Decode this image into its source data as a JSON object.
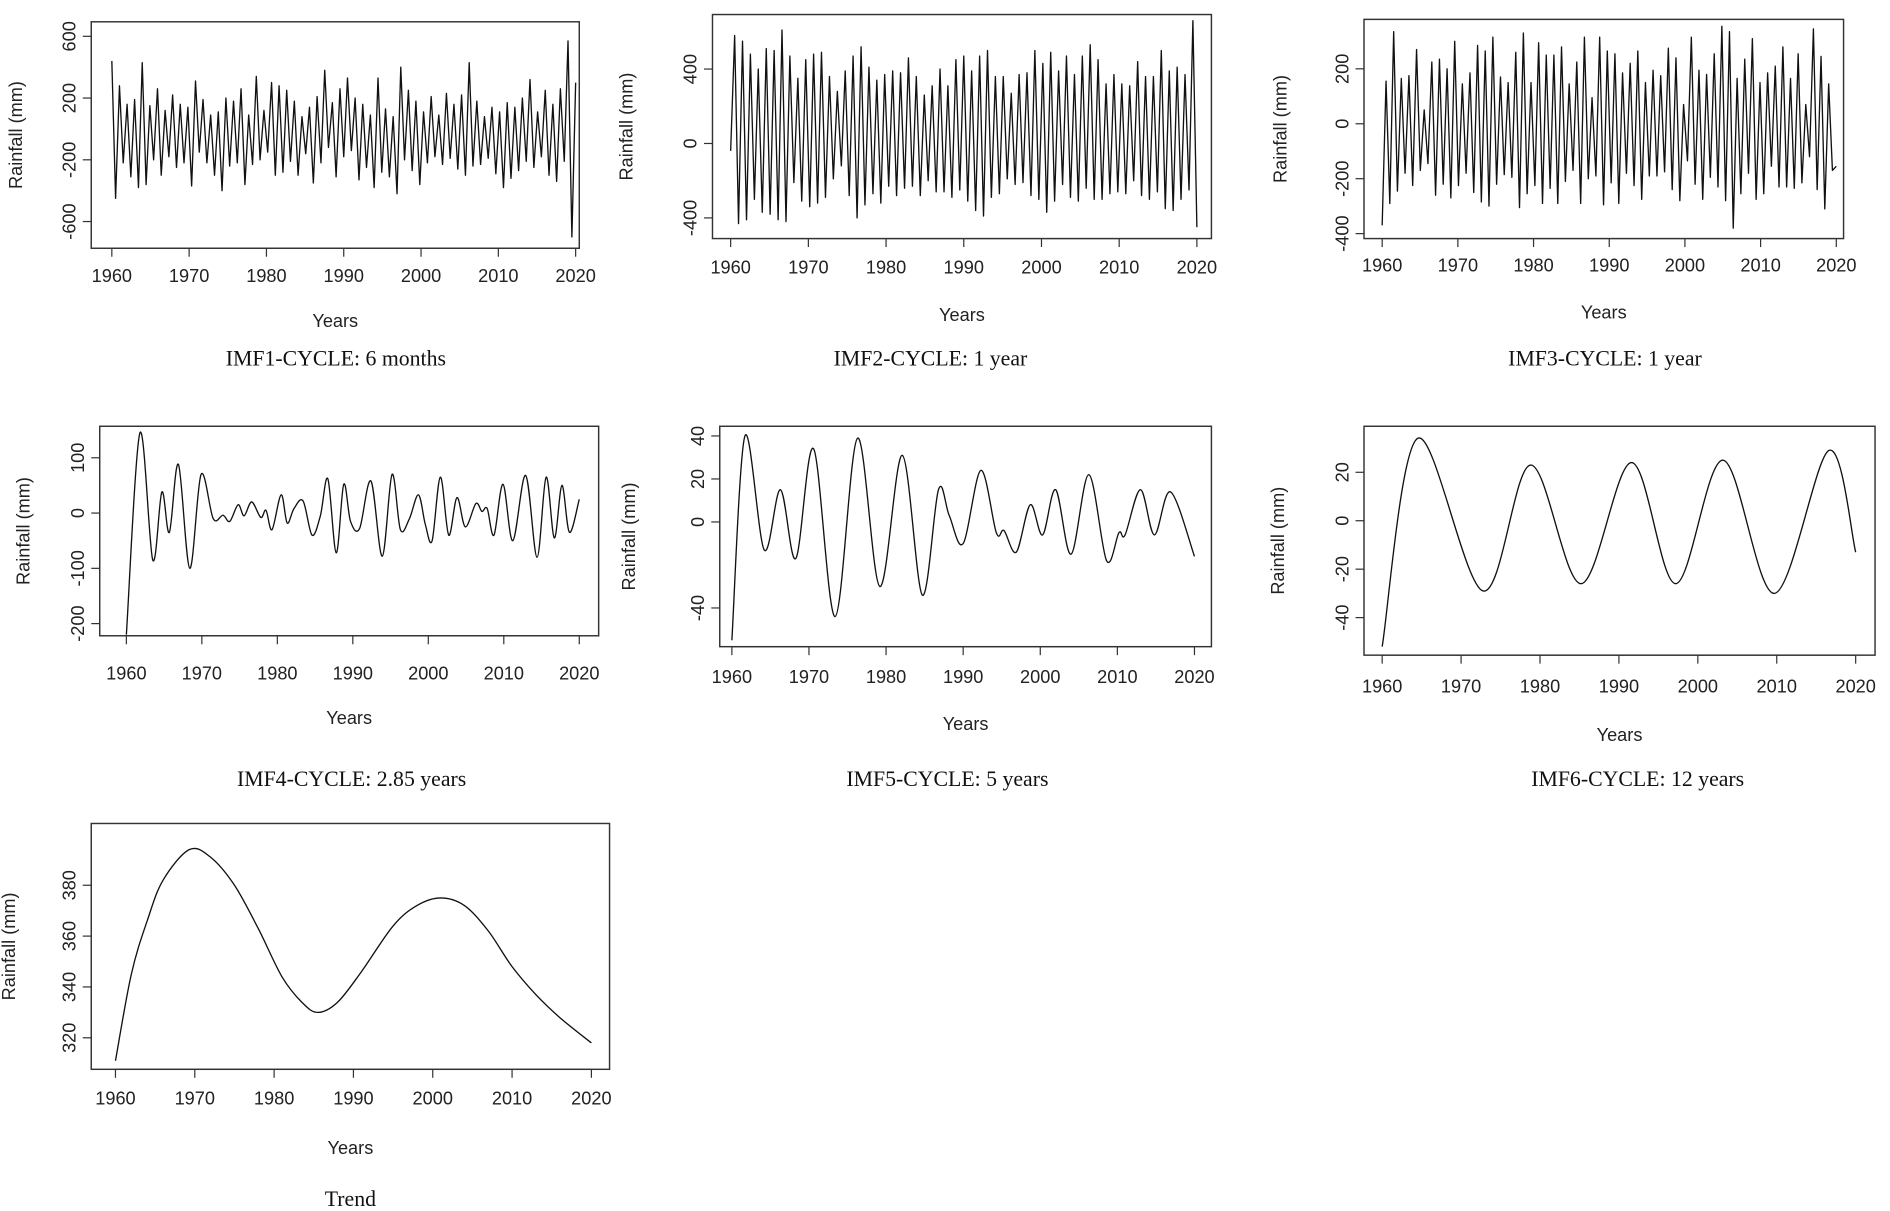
{
  "chart_data": [
    {
      "type": "line",
      "title": "IMF1-CYCLE: 6 months",
      "xlabel": "Years",
      "ylabel": "Rainfall (mm)",
      "xticks": [
        "1960",
        "1970",
        "1980",
        "1990",
        "2000",
        "2010",
        "2020"
      ],
      "yticks": [
        "600",
        "200",
        "-200",
        "-600"
      ],
      "ylim": [
        -773,
        694
      ],
      "sampling": "evenly-spaced extrema 1960-2020",
      "x_start": 1960,
      "x_end": 2020,
      "values": [
        440,
        -450,
        280,
        -220,
        160,
        -310,
        190,
        -380,
        430,
        -360,
        150,
        -200,
        260,
        -300,
        120,
        -180,
        220,
        -250,
        160,
        -220,
        140,
        -370,
        310,
        -150,
        190,
        -220,
        90,
        -300,
        110,
        -400,
        200,
        -240,
        180,
        -220,
        260,
        -360,
        90,
        -230,
        340,
        -200,
        120,
        -150,
        300,
        -300,
        280,
        -280,
        250,
        -210,
        180,
        -300,
        80,
        -160,
        140,
        -350,
        210,
        -220,
        380,
        -120,
        170,
        -310,
        260,
        -180,
        330,
        -140,
        200,
        -330,
        160,
        -250,
        90,
        -380,
        330,
        -280,
        130,
        -310,
        80,
        -420,
        400,
        -200,
        250,
        -270,
        180,
        -360,
        110,
        -220,
        210,
        -180,
        90,
        -230,
        230,
        -190,
        160,
        -260,
        220,
        -300,
        430,
        -240,
        180,
        -230,
        80,
        -190,
        140,
        -290,
        110,
        -380,
        170,
        -320,
        140,
        -270,
        200,
        -210,
        320,
        -250,
        110,
        -180,
        250,
        -300,
        160,
        -340,
        260,
        -210,
        570,
        -700,
        300
      ]
    },
    {
      "type": "line",
      "title": "IMF2-CYCLE: 1 year",
      "xlabel": "Years",
      "ylabel": "Rainfall (mm)",
      "xticks": [
        "1960",
        "1970",
        "1980",
        "1990",
        "2000",
        "2010",
        "2020"
      ],
      "yticks": [
        "400",
        "0",
        "-400"
      ],
      "ylim": [
        -511,
        693
      ],
      "sampling": "evenly-spaced extrema 1960-2020",
      "x_start": 1960,
      "x_end": 2020,
      "values": [
        -40,
        580,
        -430,
        550,
        -410,
        480,
        -300,
        400,
        -370,
        510,
        -380,
        500,
        -410,
        610,
        -420,
        470,
        -210,
        350,
        -310,
        450,
        -340,
        480,
        -320,
        490,
        -290,
        360,
        -190,
        280,
        -120,
        390,
        -280,
        470,
        -400,
        520,
        -330,
        410,
        -270,
        340,
        -320,
        370,
        -230,
        390,
        -280,
        380,
        -240,
        460,
        -230,
        360,
        -280,
        260,
        -200,
        310,
        -260,
        400,
        -260,
        310,
        -290,
        450,
        -250,
        470,
        -310,
        390,
        -360,
        470,
        -390,
        500,
        -290,
        360,
        -270,
        360,
        -190,
        270,
        -220,
        370,
        -210,
        380,
        -280,
        500,
        -300,
        430,
        -370,
        490,
        -310,
        390,
        -220,
        470,
        -290,
        370,
        -310,
        470,
        -240,
        530,
        -300,
        450,
        -300,
        320,
        -270,
        370,
        -260,
        320,
        -270,
        310,
        -200,
        440,
        -280,
        360,
        -300,
        360,
        -260,
        500,
        -350,
        390,
        -360,
        410,
        -300,
        370,
        -250,
        660,
        -450
      ]
    },
    {
      "type": "line",
      "title": "IMF3-CYCLE: 1 year",
      "xlabel": "Years",
      "ylabel": "Rainfall (mm)",
      "xticks": [
        "1960",
        "1970",
        "1980",
        "1990",
        "2000",
        "2010",
        "2020"
      ],
      "yticks": [
        "200",
        "0",
        "-200",
        "-400"
      ],
      "ylim": [
        -418,
        380
      ],
      "sampling": "evenly-spaced extrema 1960-2020",
      "x_start": 1960,
      "x_end": 2020,
      "values": [
        -370,
        155,
        -290,
        335,
        -245,
        165,
        -180,
        175,
        -225,
        270,
        -170,
        50,
        -145,
        225,
        -260,
        235,
        -220,
        200,
        -270,
        300,
        -225,
        145,
        -180,
        185,
        -250,
        285,
        -285,
        265,
        -300,
        315,
        -220,
        170,
        -185,
        150,
        -195,
        260,
        -305,
        330,
        -255,
        150,
        -225,
        295,
        -290,
        250,
        -235,
        250,
        -290,
        280,
        -210,
        145,
        -170,
        225,
        -290,
        315,
        -200,
        95,
        -190,
        315,
        -295,
        265,
        -215,
        255,
        -290,
        185,
        -180,
        220,
        -225,
        265,
        -275,
        150,
        -190,
        195,
        -190,
        175,
        -175,
        275,
        -240,
        240,
        -280,
        70,
        -135,
        315,
        -220,
        195,
        -275,
        180,
        -195,
        255,
        -230,
        355,
        -280,
        335,
        -380,
        165,
        -255,
        235,
        -180,
        310,
        -275,
        150,
        -255,
        185,
        -155,
        210,
        -230,
        280,
        -230,
        165,
        -235,
        255,
        -215,
        70,
        -120,
        345,
        -240,
        245,
        -310,
        145,
        -170,
        -155
      ]
    },
    {
      "type": "line",
      "title": "IMF4-CYCLE: 2.85 years",
      "xlabel": "Years",
      "ylabel": "Rainfall (mm)",
      "xticks": [
        "1960",
        "1970",
        "1980",
        "1990",
        "2000",
        "2010",
        "2020"
      ],
      "yticks": [
        "100",
        "0",
        "-100",
        "-200"
      ],
      "ylim": [
        -222,
        157
      ],
      "x": [
        1960,
        1961.8,
        1963.5,
        1964.7,
        1965.7,
        1966.9,
        1968.4,
        1969.9,
        1971.5,
        1972.8,
        1973.7,
        1974.8,
        1975.6,
        1976.6,
        1977.8,
        1978.5,
        1979.3,
        1980.5,
        1981.3,
        1982.2,
        1983.4,
        1984.6,
        1985.7,
        1986.7,
        1987.8,
        1988.8,
        1989.7,
        1990.9,
        1992.4,
        1993.9,
        1995.2,
        1996.3,
        1997.5,
        1998.7,
        1999.6,
        2000.5,
        2001.6,
        2002.7,
        2003.8,
        2004.9,
        2006.3,
        2007.1,
        2007.8,
        2008.7,
        2009.9,
        2011.2,
        2012.9,
        2014.4,
        2015.6,
        2016.7,
        2017.7,
        2018.7,
        2020
      ],
      "y": [
        -220,
        145,
        -85,
        38,
        -35,
        88,
        -100,
        70,
        -10,
        -4,
        -15,
        15,
        -5,
        20,
        -8,
        5,
        -30,
        33,
        -18,
        8,
        22,
        -40,
        -5,
        62,
        -72,
        52,
        -15,
        -28,
        58,
        -78,
        70,
        -30,
        -10,
        33,
        -20,
        -50,
        65,
        -40,
        28,
        -25,
        17,
        3,
        8,
        -40,
        52,
        -50,
        68,
        -80,
        65,
        -45,
        50,
        -35,
        25
      ]
    },
    {
      "type": "line",
      "title": "IMF5-CYCLE: 5 years",
      "xlabel": "Years",
      "ylabel": "Rainfall (mm)",
      "xticks": [
        "1960",
        "1970",
        "1980",
        "1990",
        "2000",
        "2010",
        "2020"
      ],
      "yticks": [
        "40",
        "20",
        "0",
        "-40"
      ],
      "ylim": [
        -58,
        44.5
      ],
      "x": [
        1960,
        1961.7,
        1964.2,
        1966.3,
        1968.3,
        1970.6,
        1973.4,
        1976.3,
        1979.2,
        1982.1,
        1984.7,
        1986.8,
        1988.2,
        1990,
        1992.3,
        1994.3,
        1995.3,
        1996.9,
        1998.7,
        2000.3,
        2002,
        2004,
        2006.3,
        2008.6,
        2010.2,
        2011,
        2013,
        2014.8,
        2016.9,
        2020
      ],
      "y": [
        -55,
        40,
        -13,
        15,
        -17,
        34,
        -44,
        39,
        -30,
        31,
        -34,
        15,
        3,
        -10,
        24,
        -5,
        -4,
        -14,
        8,
        -6,
        15,
        -15,
        22,
        -18,
        -5,
        -6,
        15,
        -6,
        14,
        -16
      ]
    },
    {
      "type": "line",
      "title": "IMF6-CYCLE: 12 years",
      "xlabel": "Years",
      "ylabel": "Rainfall (mm)",
      "xticks": [
        "1960",
        "1970",
        "1980",
        "1990",
        "2000",
        "2010",
        "2020"
      ],
      "yticks": [
        "20",
        "0",
        "-20",
        "-40"
      ],
      "ylim": [
        -55.5,
        39
      ],
      "x": [
        1960,
        1964.5,
        1972.8,
        1978.8,
        1985.2,
        1991.6,
        1997.2,
        2003.2,
        2009.7,
        2016.6,
        2020
      ],
      "y": [
        -52,
        34,
        -29,
        23,
        -26,
        24,
        -26,
        25,
        -30,
        29,
        -13
      ]
    },
    {
      "type": "line",
      "title": "Trend",
      "xlabel": "Years",
      "ylabel": "Rainfall (mm)",
      "xticks": [
        "1960",
        "1970",
        "1980",
        "1990",
        "2000",
        "2010",
        "2020"
      ],
      "yticks": [
        "380",
        "360",
        "340",
        "320"
      ],
      "ylim": [
        307.6,
        404.3
      ],
      "x": [
        1960,
        1962,
        1964,
        1966,
        1969.3,
        1972,
        1975,
        1978,
        1981,
        1983.5,
        1985.5,
        1988,
        1991,
        1995,
        1998,
        2001,
        2004,
        2007,
        2010,
        2013,
        2016,
        2020
      ],
      "y": [
        311,
        345,
        366,
        382,
        394,
        391,
        380,
        363,
        344,
        334,
        330,
        334,
        346,
        364,
        372,
        375,
        372,
        362,
        348,
        337,
        328,
        318
      ]
    }
  ]
}
